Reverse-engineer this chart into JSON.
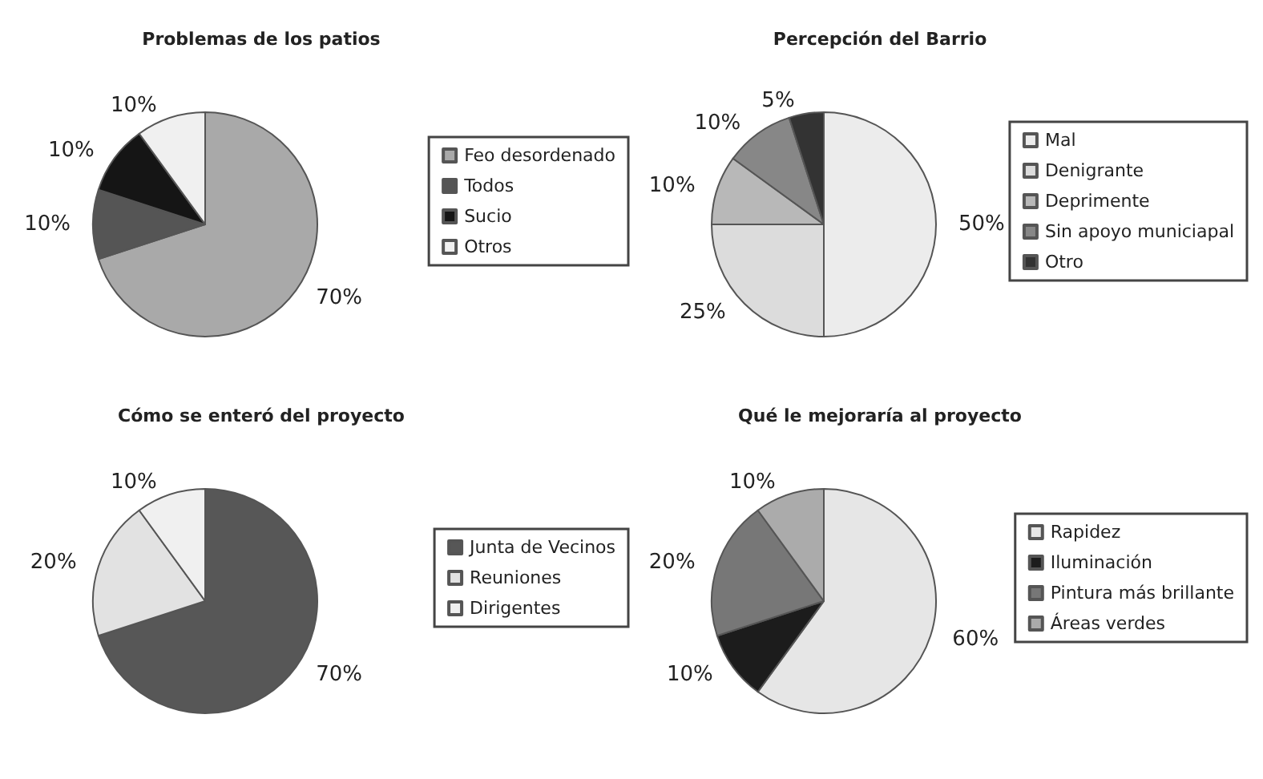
{
  "chart_data": [
    {
      "type": "pie",
      "title": "Problemas de los patios",
      "categories": [
        "Feo desordenado",
        "Todos",
        "Sucio",
        "Otros"
      ],
      "values": [
        70,
        10,
        10,
        10
      ],
      "colors": [
        "#a9a9a9",
        "#555555",
        "#151515",
        "#f0f0f0"
      ],
      "value_labels": [
        "70%",
        "10%",
        "10%",
        "10%"
      ],
      "legend": "right"
    },
    {
      "type": "pie",
      "title": "Percepción del Barrio",
      "categories": [
        "Mal",
        "Denigrante",
        "Deprimente",
        "Sin apoyo municiapal",
        "Otro"
      ],
      "values": [
        50,
        25,
        10,
        10,
        5
      ],
      "colors": [
        "#ececec",
        "#dcdcdc",
        "#b8b8b8",
        "#878787",
        "#333333"
      ],
      "value_labels": [
        "50%",
        "25%",
        "10%",
        "10%",
        "5%"
      ],
      "legend": "right"
    },
    {
      "type": "pie",
      "title": "Cómo se enteró del proyecto",
      "categories": [
        "Junta de Vecinos",
        "Reuniones",
        "Dirigentes"
      ],
      "values": [
        70,
        20,
        10
      ],
      "colors": [
        "#575757",
        "#e2e2e2",
        "#f0f0f0"
      ],
      "value_labels": [
        "70%",
        "20%",
        "10%"
      ],
      "legend": "right"
    },
    {
      "type": "pie",
      "title": "Qué le mejoraría al proyecto",
      "categories": [
        "Rapidez",
        "Iluminación",
        "Pintura más brillante",
        "Áreas verdes"
      ],
      "values": [
        60,
        10,
        20,
        10
      ],
      "colors": [
        "#e6e6e6",
        "#1c1c1c",
        "#777777",
        "#ababab"
      ],
      "value_labels": [
        "60%",
        "10%",
        "20%",
        "10%"
      ],
      "legend": "right"
    }
  ]
}
